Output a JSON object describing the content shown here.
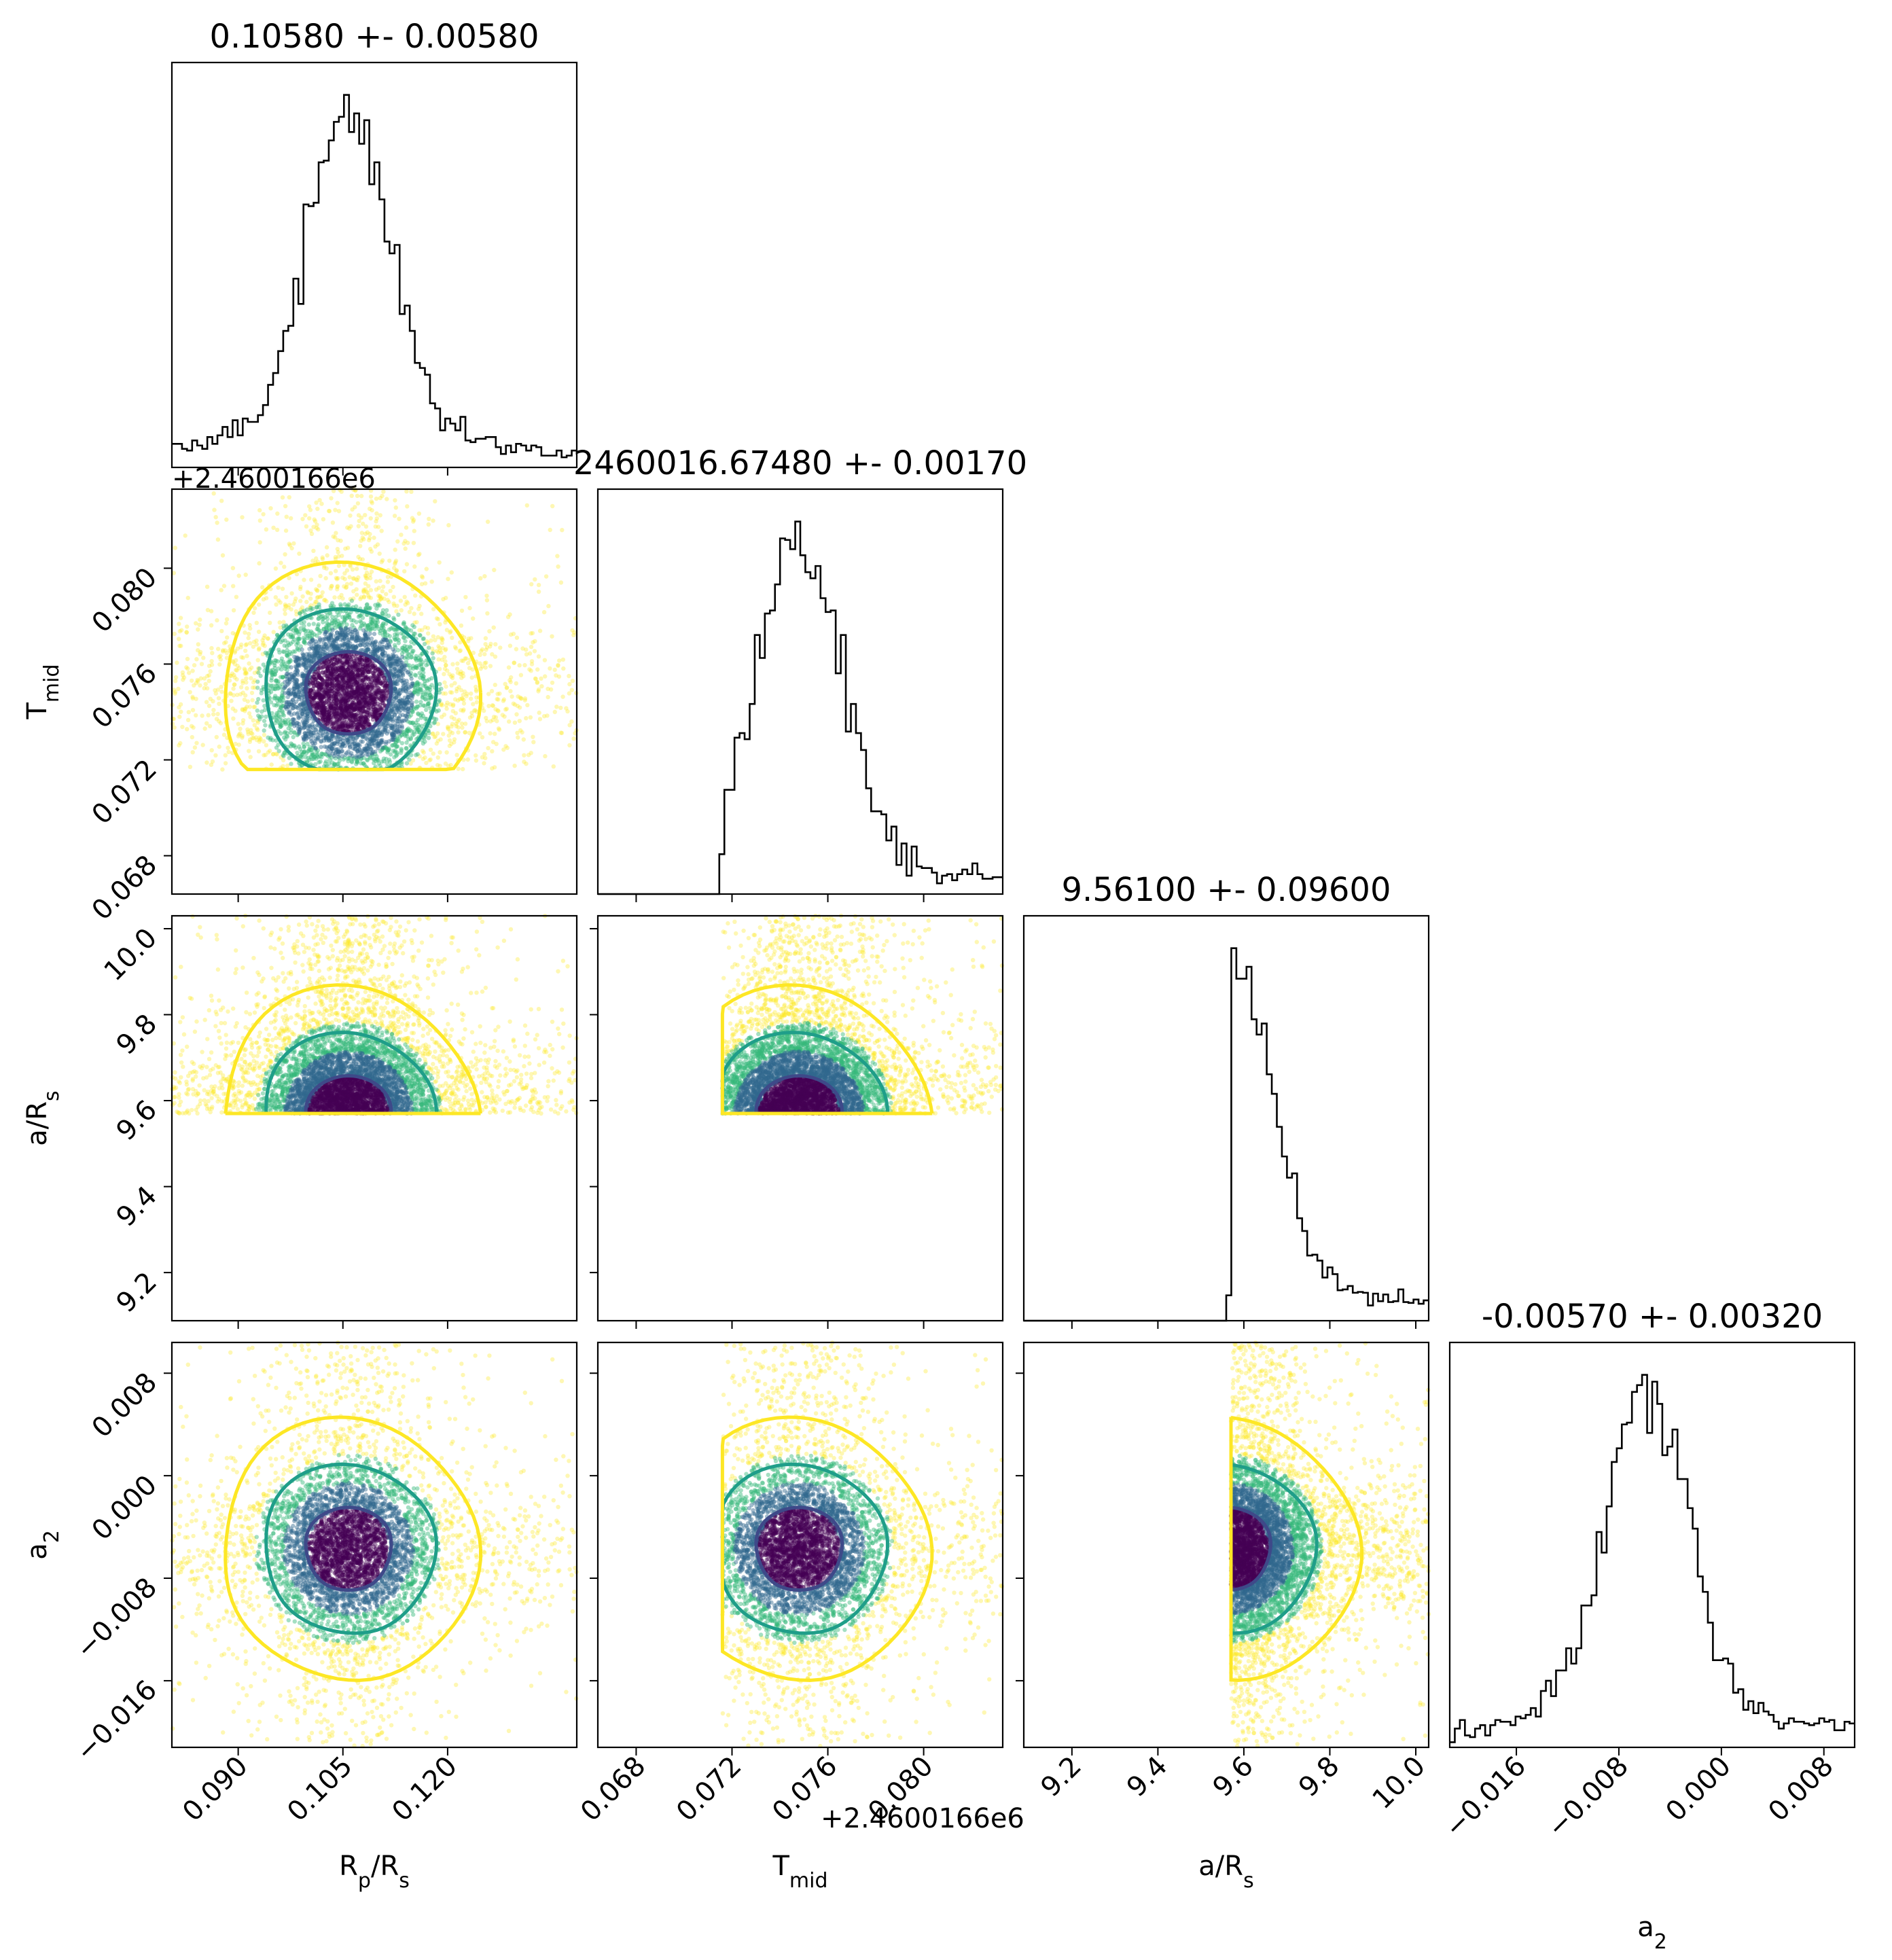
{
  "chart_data": {
    "type": "corner",
    "parameters": [
      {
        "key": "rp",
        "label": "R",
        "label_sub": "p",
        "label_suffix": "/R",
        "label_suffix_sub": "s",
        "range": [
          0.0805,
          0.1385
        ],
        "ticks": [
          0.09,
          0.105,
          0.12
        ],
        "tick_labels": [
          "0.090",
          "0.105",
          "0.120"
        ],
        "offset": "",
        "mean": 0.1058,
        "sigma": 0.0058,
        "title": "0.10580 +- 0.00580"
      },
      {
        "key": "tmid",
        "label": "T",
        "label_sub": "mid",
        "label_suffix": "",
        "label_suffix_sub": "",
        "range": [
          0.0664,
          0.0833
        ],
        "ticks": [
          0.068,
          0.072,
          0.076,
          0.08
        ],
        "tick_labels": [
          "0.068",
          "0.072",
          "0.076",
          "0.080"
        ],
        "offset": "+2.4600166e6",
        "mean": 0.0748,
        "sigma": 0.0017,
        "title": "2460016.67480 +- 0.00170"
      },
      {
        "key": "ars",
        "label": "a/R",
        "label_sub": "s",
        "label_suffix": "",
        "label_suffix_sub": "",
        "range": [
          9.088,
          10.03
        ],
        "ticks": [
          9.2,
          9.4,
          9.6,
          9.8,
          10.0
        ],
        "tick_labels": [
          "9.2",
          "9.4",
          "9.6",
          "9.8",
          "10.0"
        ],
        "offset": "",
        "mean": 9.561,
        "sigma": 0.096,
        "title": "9.56100 +- 0.09600"
      },
      {
        "key": "a2",
        "label": "a",
        "label_sub": "2",
        "label_suffix": "",
        "label_suffix_sub": "",
        "range": [
          -0.0212,
          0.0104
        ],
        "ticks": [
          -0.016,
          -0.008,
          0.0,
          0.008
        ],
        "tick_labels": [
          "−0.016",
          "−0.008",
          "0.000",
          "0.008"
        ],
        "offset": "",
        "mean": -0.0057,
        "sigma": 0.0032,
        "title": "-0.00570 +- 0.00320"
      }
    ],
    "truncation": {
      "tmid_min": 0.0716,
      "ars_min": 9.57
    },
    "contour_levels_sigma": [
      1,
      2,
      3
    ],
    "colormap": "viridis",
    "colors": {
      "contour_1sigma": "#3e4989",
      "contour_2sigma": "#1f9e89",
      "contour_3sigma": "#fde725",
      "scatter_core": "#440154",
      "scatter_mid": "#31688e",
      "scatter_outer": "#35b779",
      "scatter_tail": "#fde725",
      "histogram_line": "#000000"
    },
    "histogram_bins": 80
  }
}
